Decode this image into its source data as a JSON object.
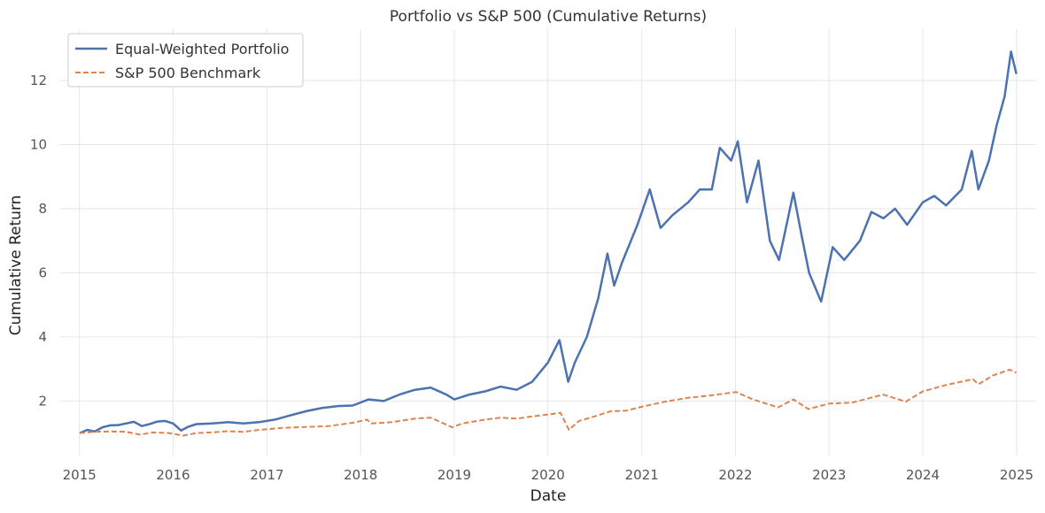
{
  "chart_data": {
    "type": "line",
    "title": "Portfolio vs S&P 500 (Cumulative Returns)",
    "xlabel": "Date",
    "ylabel": "Cumulative Return",
    "xlim": [
      "2014-10-18",
      "2025-03-18"
    ],
    "ylim": [
      0.3,
      13.6
    ],
    "x_ticks": [
      "2015",
      "2016",
      "2017",
      "2018",
      "2019",
      "2020",
      "2021",
      "2022",
      "2023",
      "2024",
      "2025"
    ],
    "y_ticks": [
      "2",
      "4",
      "6",
      "8",
      "10",
      "12"
    ],
    "grid": true,
    "legend_position": "top-left",
    "series": [
      {
        "name": "Equal-Weighted Portfolio",
        "color": "#4c72b0",
        "style": "solid",
        "points": [
          [
            "2015-01-02",
            1.0
          ],
          [
            "2015-02-01",
            1.1
          ],
          [
            "2015-03-01",
            1.05
          ],
          [
            "2015-04-01",
            1.18
          ],
          [
            "2015-05-01",
            1.24
          ],
          [
            "2015-06-01",
            1.25
          ],
          [
            "2015-07-01",
            1.3
          ],
          [
            "2015-08-01",
            1.35
          ],
          [
            "2015-09-01",
            1.22
          ],
          [
            "2015-10-01",
            1.28
          ],
          [
            "2015-11-01",
            1.36
          ],
          [
            "2015-12-01",
            1.38
          ],
          [
            "2016-01-01",
            1.3
          ],
          [
            "2016-02-01",
            1.08
          ],
          [
            "2016-03-01",
            1.2
          ],
          [
            "2016-04-01",
            1.28
          ],
          [
            "2016-06-01",
            1.3
          ],
          [
            "2016-08-01",
            1.34
          ],
          [
            "2016-10-01",
            1.3
          ],
          [
            "2016-12-01",
            1.34
          ],
          [
            "2017-02-01",
            1.42
          ],
          [
            "2017-04-01",
            1.55
          ],
          [
            "2017-06-01",
            1.68
          ],
          [
            "2017-08-01",
            1.78
          ],
          [
            "2017-10-01",
            1.84
          ],
          [
            "2017-12-01",
            1.86
          ],
          [
            "2018-02-01",
            2.05
          ],
          [
            "2018-04-01",
            2.0
          ],
          [
            "2018-06-01",
            2.2
          ],
          [
            "2018-08-01",
            2.35
          ],
          [
            "2018-10-01",
            2.42
          ],
          [
            "2018-12-01",
            2.2
          ],
          [
            "2019-01-01",
            2.05
          ],
          [
            "2019-03-01",
            2.2
          ],
          [
            "2019-05-01",
            2.3
          ],
          [
            "2019-07-01",
            2.45
          ],
          [
            "2019-09-01",
            2.35
          ],
          [
            "2019-11-01",
            2.6
          ],
          [
            "2020-01-01",
            3.2
          ],
          [
            "2020-02-15",
            3.9
          ],
          [
            "2020-03-20",
            2.6
          ],
          [
            "2020-04-15",
            3.2
          ],
          [
            "2020-06-01",
            4.0
          ],
          [
            "2020-07-15",
            5.2
          ],
          [
            "2020-08-20",
            6.6
          ],
          [
            "2020-09-15",
            5.6
          ],
          [
            "2020-10-15",
            6.3
          ],
          [
            "2020-12-15",
            7.5
          ],
          [
            "2021-02-01",
            8.6
          ],
          [
            "2021-03-15",
            7.4
          ],
          [
            "2021-05-01",
            7.8
          ],
          [
            "2021-07-01",
            8.2
          ],
          [
            "2021-08-15",
            8.6
          ],
          [
            "2021-10-01",
            8.6
          ],
          [
            "2021-11-01",
            9.9
          ],
          [
            "2021-12-15",
            9.5
          ],
          [
            "2022-01-10",
            10.1
          ],
          [
            "2022-02-15",
            8.2
          ],
          [
            "2022-04-01",
            9.5
          ],
          [
            "2022-05-15",
            7.0
          ],
          [
            "2022-06-20",
            6.4
          ],
          [
            "2022-08-15",
            8.5
          ],
          [
            "2022-09-15",
            7.2
          ],
          [
            "2022-10-15",
            6.0
          ],
          [
            "2022-12-01",
            5.1
          ],
          [
            "2023-01-15",
            6.8
          ],
          [
            "2023-03-01",
            6.4
          ],
          [
            "2023-05-01",
            7.0
          ],
          [
            "2023-06-15",
            7.9
          ],
          [
            "2023-08-01",
            7.7
          ],
          [
            "2023-09-15",
            8.0
          ],
          [
            "2023-11-01",
            7.5
          ],
          [
            "2024-01-01",
            8.2
          ],
          [
            "2024-02-15",
            8.4
          ],
          [
            "2024-04-01",
            8.1
          ],
          [
            "2024-06-01",
            8.6
          ],
          [
            "2024-07-10",
            9.8
          ],
          [
            "2024-08-05",
            8.6
          ],
          [
            "2024-09-15",
            9.5
          ],
          [
            "2024-10-15",
            10.6
          ],
          [
            "2024-11-15",
            11.5
          ],
          [
            "2024-12-10",
            12.9
          ],
          [
            "2024-12-31",
            12.2
          ]
        ]
      },
      {
        "name": "S&P 500 Benchmark",
        "color": "#dd8452",
        "style": "dashed",
        "points": [
          [
            "2015-01-02",
            1.0
          ],
          [
            "2015-03-01",
            1.04
          ],
          [
            "2015-05-01",
            1.05
          ],
          [
            "2015-07-01",
            1.04
          ],
          [
            "2015-08-25",
            0.95
          ],
          [
            "2015-10-15",
            1.02
          ],
          [
            "2015-12-15",
            1.0
          ],
          [
            "2016-02-10",
            0.92
          ],
          [
            "2016-04-01",
            1.0
          ],
          [
            "2016-06-01",
            1.02
          ],
          [
            "2016-08-01",
            1.06
          ],
          [
            "2016-10-01",
            1.04
          ],
          [
            "2016-12-01",
            1.1
          ],
          [
            "2017-03-01",
            1.16
          ],
          [
            "2017-06-01",
            1.19
          ],
          [
            "2017-09-01",
            1.22
          ],
          [
            "2017-12-01",
            1.32
          ],
          [
            "2018-01-26",
            1.42
          ],
          [
            "2018-02-10",
            1.3
          ],
          [
            "2018-05-01",
            1.34
          ],
          [
            "2018-08-01",
            1.45
          ],
          [
            "2018-10-01",
            1.48
          ],
          [
            "2018-12-24",
            1.18
          ],
          [
            "2019-02-01",
            1.3
          ],
          [
            "2019-05-01",
            1.42
          ],
          [
            "2019-07-01",
            1.48
          ],
          [
            "2019-09-01",
            1.45
          ],
          [
            "2019-11-01",
            1.52
          ],
          [
            "2020-01-01",
            1.58
          ],
          [
            "2020-02-19",
            1.63
          ],
          [
            "2020-03-23",
            1.1
          ],
          [
            "2020-05-01",
            1.38
          ],
          [
            "2020-07-01",
            1.52
          ],
          [
            "2020-09-01",
            1.68
          ],
          [
            "2020-11-01",
            1.7
          ],
          [
            "2021-01-01",
            1.82
          ],
          [
            "2021-04-01",
            1.98
          ],
          [
            "2021-07-01",
            2.1
          ],
          [
            "2021-10-01",
            2.18
          ],
          [
            "2022-01-03",
            2.28
          ],
          [
            "2022-03-10",
            2.05
          ],
          [
            "2022-06-16",
            1.8
          ],
          [
            "2022-08-15",
            2.05
          ],
          [
            "2022-10-12",
            1.75
          ],
          [
            "2023-01-01",
            1.92
          ],
          [
            "2023-04-01",
            1.95
          ],
          [
            "2023-07-31",
            2.2
          ],
          [
            "2023-10-27",
            1.98
          ],
          [
            "2024-01-01",
            2.3
          ],
          [
            "2024-04-01",
            2.5
          ],
          [
            "2024-07-15",
            2.68
          ],
          [
            "2024-08-05",
            2.52
          ],
          [
            "2024-10-01",
            2.8
          ],
          [
            "2024-12-05",
            2.98
          ],
          [
            "2024-12-31",
            2.88
          ]
        ]
      }
    ]
  }
}
